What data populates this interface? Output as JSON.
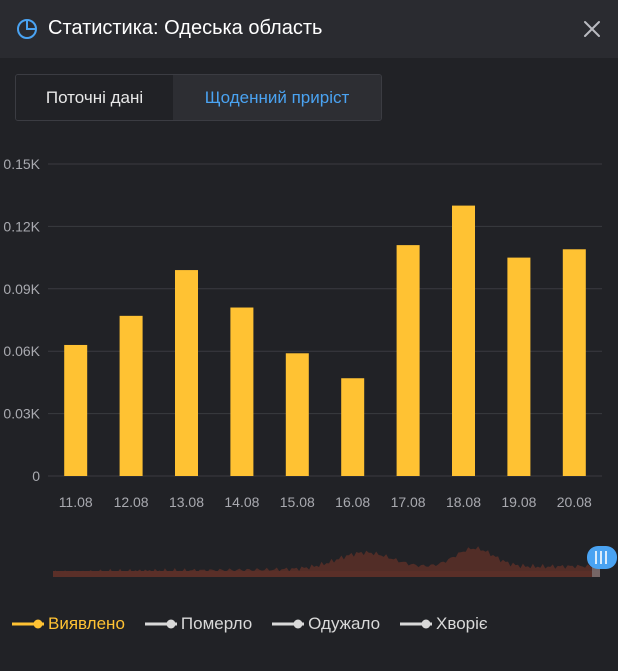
{
  "header": {
    "title": "Статистика: Одеська область",
    "icon": "pie-chart-icon",
    "close_icon": "close-icon"
  },
  "tabs": [
    {
      "label": "Поточні дані",
      "active": false
    },
    {
      "label": "Щоденний приріст",
      "active": true
    }
  ],
  "legend": [
    {
      "label": "Виявлено",
      "color": "#ffc233",
      "active": true
    },
    {
      "label": "Померло",
      "color": "#d9d9d9",
      "active": false
    },
    {
      "label": "Одужало",
      "color": "#d9d9d9",
      "active": false
    },
    {
      "label": "Хворіє",
      "color": "#d9d9d9",
      "active": false
    }
  ],
  "colors": {
    "bar": "#ffc233",
    "accent": "#4aa3f2",
    "grid": "#3a3b40",
    "tick": "#a9aab0",
    "navigator": "#5a2f28"
  },
  "chart_data": {
    "type": "bar",
    "categories": [
      "11.08",
      "12.08",
      "13.08",
      "14.08",
      "15.08",
      "16.08",
      "17.08",
      "18.08",
      "19.08",
      "20.08"
    ],
    "series": [
      {
        "name": "Виявлено",
        "values": [
          63,
          77,
          99,
          81,
          59,
          47,
          111,
          130,
          105,
          109
        ]
      }
    ],
    "ylim": [
      0,
      150
    ],
    "yticks": [
      0,
      30,
      60,
      90,
      120,
      150
    ],
    "ytick_labels": [
      "0",
      "0.03K",
      "0.06K",
      "0.09K",
      "0.12K",
      "0.15K"
    ],
    "grid": true,
    "legend_position": "bottom"
  }
}
